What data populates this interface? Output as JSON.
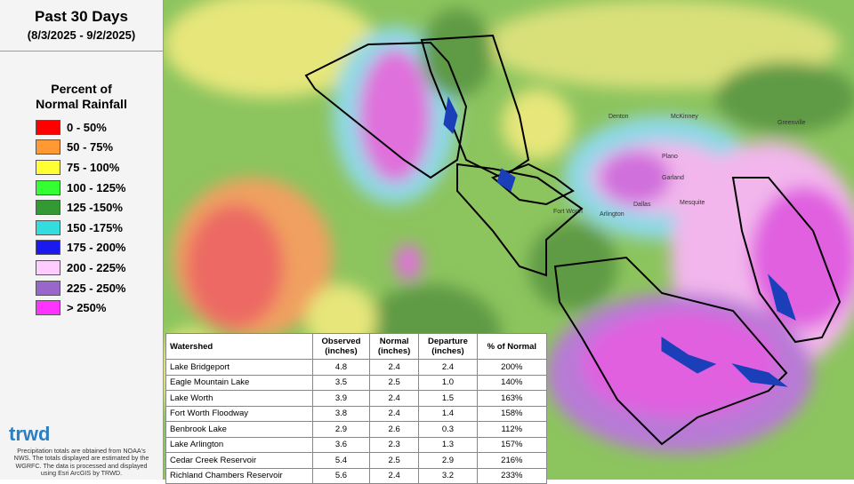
{
  "header": {
    "title": "Past 30 Days",
    "subtitle": "(8/3/2025 - 9/2/2025)"
  },
  "legend": {
    "title": [
      "Percent of",
      "Normal Rainfall"
    ],
    "items": [
      {
        "label": "0 - 50%",
        "color": "#ff0000"
      },
      {
        "label": "50 - 75%",
        "color": "#ff9933"
      },
      {
        "label": "75 - 100%",
        "color": "#ffff33"
      },
      {
        "label": "100 - 125%",
        "color": "#33ff33"
      },
      {
        "label": "125 -150%",
        "color": "#339933"
      },
      {
        "label": "150 -175%",
        "color": "#33dddd"
      },
      {
        "label": "175 - 200%",
        "color": "#1a1aee"
      },
      {
        "label": "200 - 225%",
        "color": "#ffccff"
      },
      {
        "label": "225 - 250%",
        "color": "#9966cc"
      },
      {
        "label": "> 250%",
        "color": "#ff33ff"
      }
    ]
  },
  "footer": {
    "logo": "trwd",
    "note": [
      "Precipitation totals are obtained from NOAA's",
      "NWS. The totals displayed are estimated by the",
      "WGRFC. The data is processed and displayed",
      "using Esri ArcGIS by TRWD."
    ]
  },
  "map": {
    "labels": [
      "Denton",
      "McKinney",
      "Plano",
      "Dallas",
      "Fort Worth",
      "Arlington",
      "Garland",
      "Mesquite",
      "Greenville"
    ]
  },
  "table": {
    "header": [
      "Watershed",
      "Observed\n(inches)",
      "Normal\n(inches)",
      "Departure\n(inches)",
      "% of Normal"
    ],
    "rows": [
      [
        "Lake Bridgeport",
        "4.8",
        "2.4",
        "2.4",
        "200%"
      ],
      [
        "Eagle Mountain Lake",
        "3.5",
        "2.5",
        "1.0",
        "140%"
      ],
      [
        "Lake Worth",
        "3.9",
        "2.4",
        "1.5",
        "163%"
      ],
      [
        "Fort Worth Floodway",
        "3.8",
        "2.4",
        "1.4",
        "158%"
      ],
      [
        "Benbrook Lake",
        "2.9",
        "2.6",
        "0.3",
        "112%"
      ],
      [
        "Lake Arlington",
        "3.6",
        "2.3",
        "1.3",
        "157%"
      ],
      [
        "Cedar Creek Reservoir",
        "5.4",
        "2.5",
        "2.9",
        "216%"
      ],
      [
        "Richland Chambers Reservoir",
        "5.6",
        "2.4",
        "3.2",
        "233%"
      ]
    ]
  }
}
